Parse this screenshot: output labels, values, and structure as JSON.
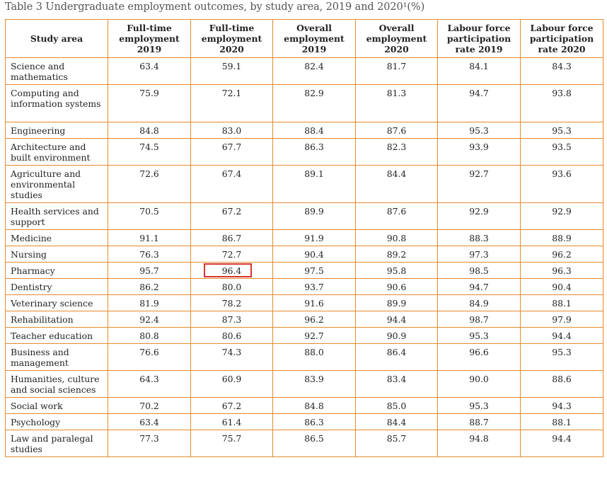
{
  "caption": "Table 3 Undergraduate employment outcomes, by study area, 2019 and 2020¹(%)",
  "headers": [
    "Study area",
    "Full-time employment 2019",
    "Full-time employment 2020",
    "Overall employment 2019",
    "Overall employment 2020",
    "Labour force participation rate 2019",
    "Labour force participation rate 2020"
  ],
  "rows": [
    {
      "area": "Science and mathematics",
      "v": [
        "63.4",
        "59.1",
        "82.4",
        "81.7",
        "84.1",
        "84.3"
      ]
    },
    {
      "area": "Computing and information systems",
      "v": [
        "75.9",
        "72.1",
        "82.9",
        "81.3",
        "94.7",
        "93.8"
      ]
    },
    {
      "area": "Engineering",
      "v": [
        "84.8",
        "83.0",
        "88.4",
        "87.6",
        "95.3",
        "95.3"
      ]
    },
    {
      "area": "Architecture and built environment",
      "v": [
        "74.5",
        "67.7",
        "86.3",
        "82.3",
        "93.9",
        "93.5"
      ]
    },
    {
      "area": "Agriculture and environmental studies",
      "v": [
        "72.6",
        "67.4",
        "89.1",
        "84.4",
        "92.7",
        "93.6"
      ]
    },
    {
      "area": "Health services and support",
      "v": [
        "70.5",
        "67.2",
        "89.9",
        "87.6",
        "92.9",
        "92.9"
      ]
    },
    {
      "area": "Medicine",
      "v": [
        "91.1",
        "86.7",
        "91.9",
        "90.8",
        "88.3",
        "88.9"
      ]
    },
    {
      "area": "Nursing",
      "v": [
        "76.3",
        "72.7",
        "90.4",
        "89.2",
        "97.3",
        "96.2"
      ]
    },
    {
      "area": "Pharmacy",
      "v": [
        "95.7",
        "96.4",
        "97.5",
        "95.8",
        "98.5",
        "96.3"
      ]
    },
    {
      "area": "Dentistry",
      "v": [
        "86.2",
        "80.0",
        "93.7",
        "90.6",
        "94.7",
        "90.4"
      ]
    },
    {
      "area": "Veterinary science",
      "v": [
        "81.9",
        "78.2",
        "91.6",
        "89.9",
        "84.9",
        "88.1"
      ]
    },
    {
      "area": "Rehabilitation",
      "v": [
        "92.4",
        "87.3",
        "96.2",
        "94.4",
        "98.7",
        "97.9"
      ]
    },
    {
      "area": "Teacher education",
      "v": [
        "80.8",
        "80.6",
        "92.7",
        "90.9",
        "95.3",
        "94.4"
      ]
    },
    {
      "area": "Business and management",
      "v": [
        "76.6",
        "74.3",
        "88.0",
        "86.4",
        "96.6",
        "95.3"
      ]
    },
    {
      "area": "Humanities, culture and social sciences",
      "v": [
        "64.3",
        "60.9",
        "83.9",
        "83.4",
        "90.0",
        "88.6"
      ]
    },
    {
      "area": "Social work",
      "v": [
        "70.2",
        "67.2",
        "84.8",
        "85.0",
        "95.3",
        "94.3"
      ]
    },
    {
      "area": "Psychology",
      "v": [
        "63.4",
        "61.4",
        "86.3",
        "84.4",
        "88.7",
        "88.1"
      ]
    },
    {
      "area": "Law and paralegal studies",
      "v": [
        "77.3",
        "75.7",
        "86.5",
        "85.7",
        "94.8",
        "94.4"
      ]
    }
  ],
  "highlight": {
    "row": 8,
    "col": 1,
    "color": "#d6342e"
  },
  "colors": {
    "border": "#e58a2e",
    "caption": "#555555"
  }
}
